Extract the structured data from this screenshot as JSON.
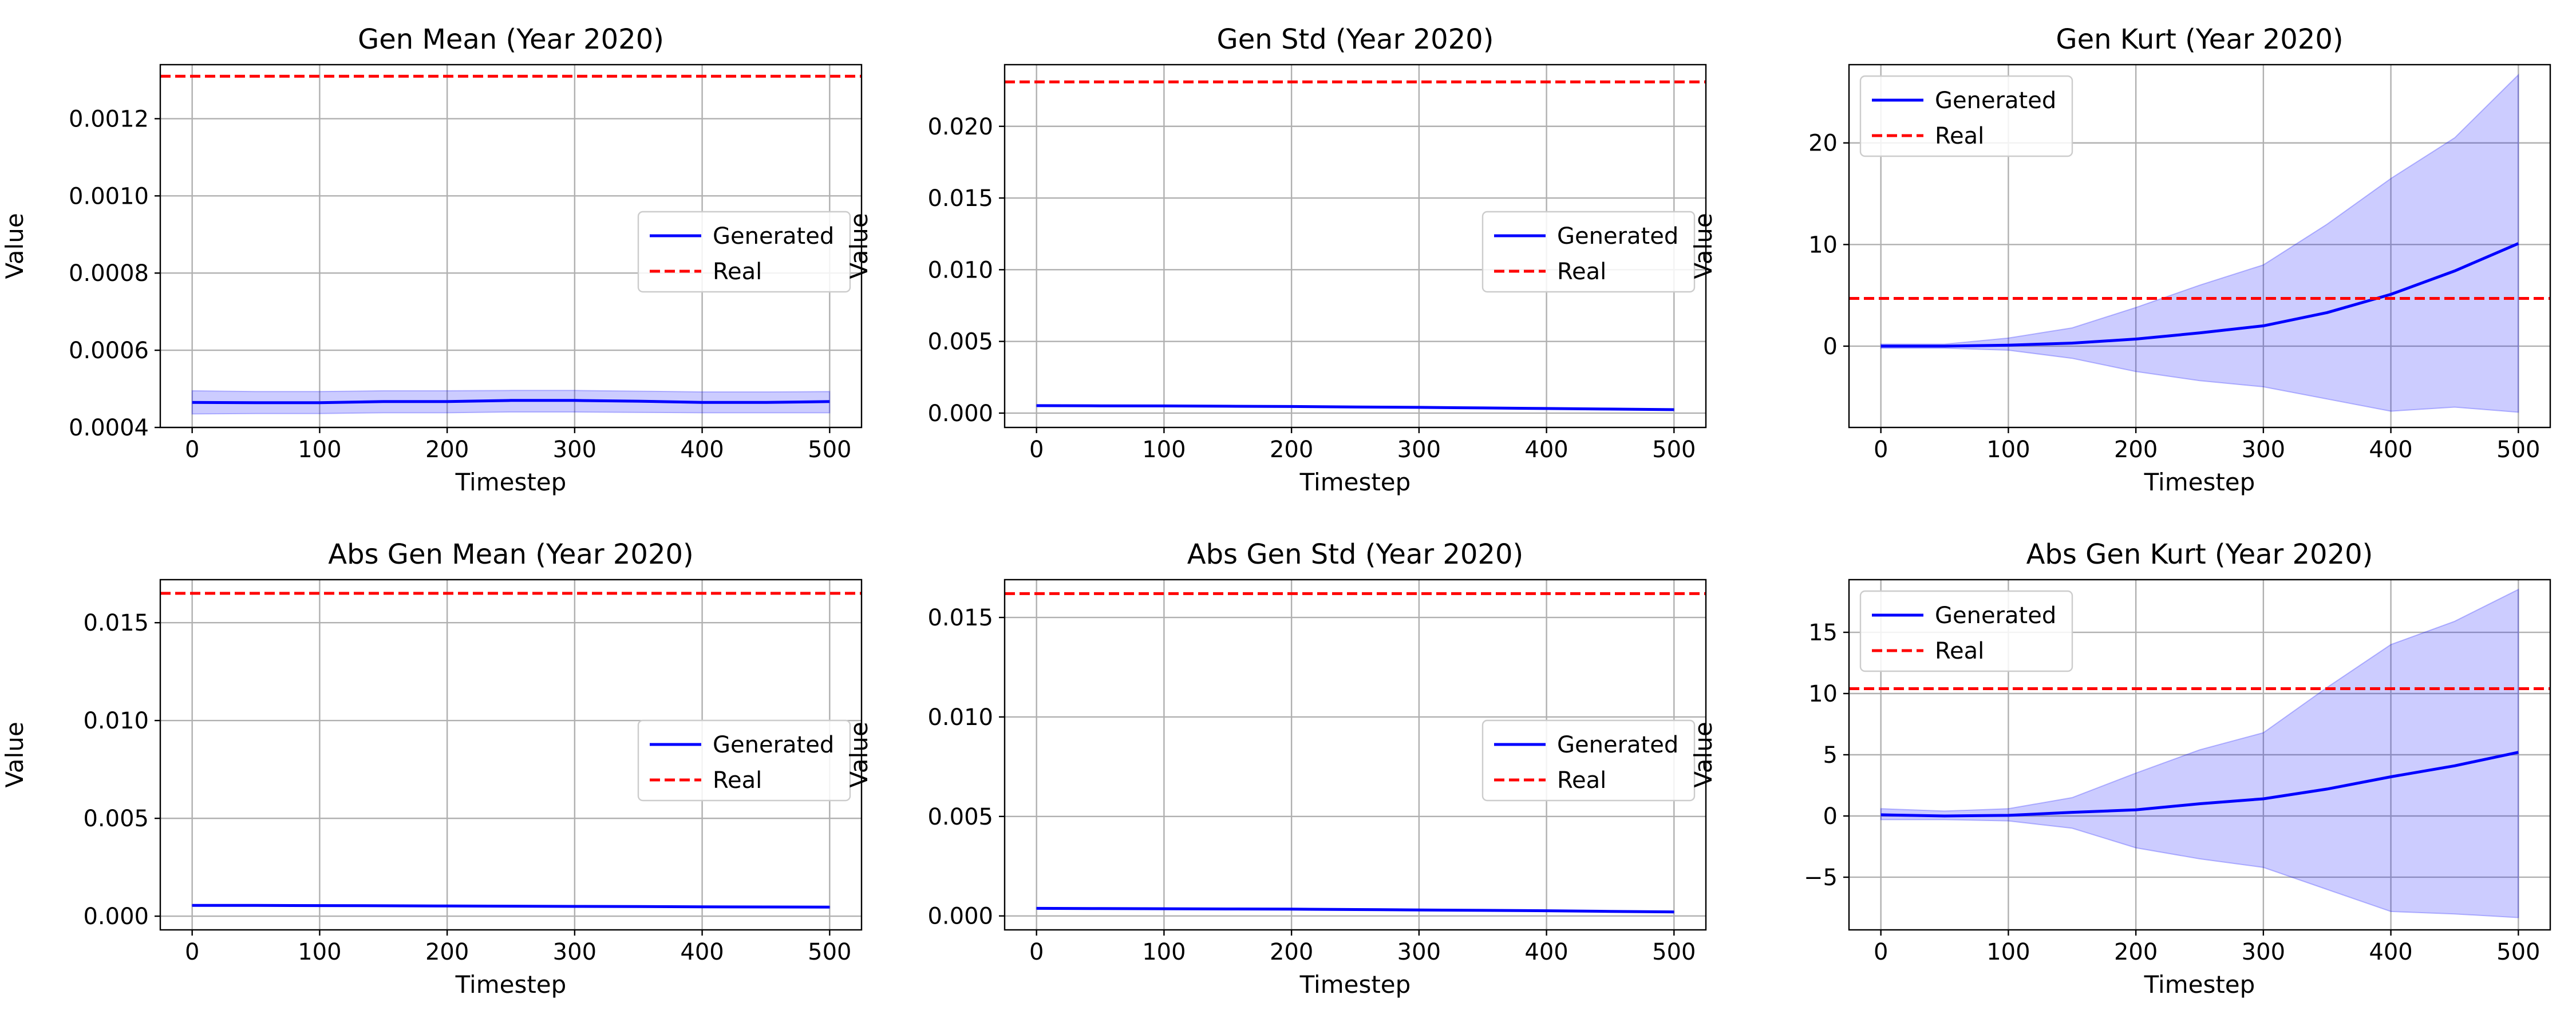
{
  "colors": {
    "generated": "#0000ff",
    "band": "#0000ff",
    "real": "#ff0000",
    "grid": "#b0b0b0"
  },
  "chart_data": [
    {
      "type": "line",
      "title": "Gen Mean (Year 2020)",
      "xlabel": "Timestep",
      "ylabel": "Value",
      "xlim": [
        -25,
        525
      ],
      "ylim": [
        0.0004,
        0.00134
      ],
      "xticks": [
        0,
        100,
        200,
        300,
        400,
        500
      ],
      "xtick_labels": [
        "0",
        "100",
        "200",
        "300",
        "400",
        "500"
      ],
      "yticks": [
        0.0004,
        0.0006,
        0.0008,
        0.001,
        0.0012
      ],
      "ytick_labels": [
        "0.0004",
        "0.0006",
        "0.0008",
        "0.0010",
        "0.0012"
      ],
      "grid": true,
      "legend_placement": "center-right",
      "x": [
        0,
        50,
        100,
        150,
        200,
        250,
        300,
        350,
        400,
        450,
        500
      ],
      "series": [
        {
          "name": "Generated",
          "style": "solid",
          "values": [
            0.000465,
            0.000464,
            0.000464,
            0.000467,
            0.000467,
            0.00047,
            0.00047,
            0.000468,
            0.000465,
            0.000465,
            0.000467
          ],
          "band_lower": [
            0.000435,
            0.000436,
            0.000436,
            0.000438,
            0.000438,
            0.00044,
            0.00044,
            0.000439,
            0.000438,
            0.000438,
            0.000438
          ],
          "band_upper": [
            0.000495,
            0.000493,
            0.000493,
            0.000495,
            0.000495,
            0.000496,
            0.000496,
            0.000494,
            0.000492,
            0.000492,
            0.000493
          ]
        },
        {
          "name": "Real",
          "style": "dashed",
          "constant": 0.00131
        }
      ]
    },
    {
      "type": "line",
      "title": "Gen Std (Year 2020)",
      "xlabel": "Timestep",
      "ylabel": "Value",
      "xlim": [
        -25,
        525
      ],
      "ylim": [
        -0.001,
        0.0243
      ],
      "xticks": [
        0,
        100,
        200,
        300,
        400,
        500
      ],
      "xtick_labels": [
        "0",
        "100",
        "200",
        "300",
        "400",
        "500"
      ],
      "yticks": [
        0.0,
        0.005,
        0.01,
        0.015,
        0.02
      ],
      "ytick_labels": [
        "0.000",
        "0.005",
        "0.010",
        "0.015",
        "0.020"
      ],
      "grid": true,
      "legend_placement": "center-right",
      "x": [
        0,
        50,
        100,
        150,
        200,
        250,
        300,
        350,
        400,
        450,
        500
      ],
      "series": [
        {
          "name": "Generated",
          "style": "solid",
          "values": [
            0.00052,
            0.00051,
            0.0005,
            0.00048,
            0.00046,
            0.00043,
            0.0004,
            0.00036,
            0.00032,
            0.00028,
            0.00024
          ],
          "band_lower": [
            0.00048,
            0.00047,
            0.00046,
            0.00044,
            0.00042,
            0.00039,
            0.00036,
            0.00032,
            0.00028,
            0.00024,
            0.0002
          ],
          "band_upper": [
            0.00056,
            0.00055,
            0.00054,
            0.00052,
            0.0005,
            0.00047,
            0.00044,
            0.0004,
            0.00036,
            0.00032,
            0.00028
          ]
        },
        {
          "name": "Real",
          "style": "dashed",
          "constant": 0.0231
        }
      ]
    },
    {
      "type": "line",
      "title": "Gen Kurt (Year 2020)",
      "xlabel": "Timestep",
      "ylabel": "Value",
      "xlim": [
        -25,
        525
      ],
      "ylim": [
        -8,
        27.7
      ],
      "xticks": [
        0,
        100,
        200,
        300,
        400,
        500
      ],
      "xtick_labels": [
        "0",
        "100",
        "200",
        "300",
        "400",
        "500"
      ],
      "yticks": [
        0,
        10,
        20
      ],
      "ytick_labels": [
        "0",
        "10",
        "20"
      ],
      "grid": true,
      "legend_placement": "upper-left",
      "x": [
        0,
        50,
        100,
        150,
        200,
        250,
        300,
        350,
        400,
        450,
        500
      ],
      "series": [
        {
          "name": "Generated",
          "style": "solid",
          "values": [
            0,
            0,
            0.1,
            0.3,
            0.7,
            1.3,
            2.0,
            3.3,
            5.1,
            7.4,
            10.1
          ],
          "band_lower": [
            -0.2,
            -0.2,
            -0.4,
            -1.2,
            -2.5,
            -3.4,
            -4.0,
            -5.2,
            -6.4,
            -6.0,
            -6.5
          ],
          "band_upper": [
            0.2,
            0.2,
            0.8,
            1.8,
            3.8,
            6.0,
            8.0,
            12.0,
            16.5,
            20.5,
            26.7
          ]
        },
        {
          "name": "Real",
          "style": "dashed",
          "constant": 4.7
        }
      ]
    },
    {
      "type": "line",
      "title": "Abs Gen Mean (Year 2020)",
      "xlabel": "Timestep",
      "ylabel": "Value",
      "xlim": [
        -25,
        525
      ],
      "ylim": [
        -0.0007,
        0.0172
      ],
      "xticks": [
        0,
        100,
        200,
        300,
        400,
        500
      ],
      "xtick_labels": [
        "0",
        "100",
        "200",
        "300",
        "400",
        "500"
      ],
      "yticks": [
        0.0,
        0.005,
        0.01,
        0.015
      ],
      "ytick_labels": [
        "0.000",
        "0.005",
        "0.010",
        "0.015"
      ],
      "grid": true,
      "legend_placement": "center-right",
      "x": [
        0,
        50,
        100,
        150,
        200,
        250,
        300,
        350,
        400,
        450,
        500
      ],
      "series": [
        {
          "name": "Generated",
          "style": "solid",
          "values": [
            0.00055,
            0.00055,
            0.00054,
            0.00053,
            0.00052,
            0.00051,
            0.0005,
            0.00049,
            0.00048,
            0.00047,
            0.00046
          ],
          "band_lower": [
            0.00052,
            0.00052,
            0.00051,
            0.0005,
            0.00049,
            0.00048,
            0.00047,
            0.00046,
            0.00045,
            0.00044,
            0.00043
          ],
          "band_upper": [
            0.00058,
            0.00058,
            0.00057,
            0.00056,
            0.00055,
            0.00054,
            0.00053,
            0.00052,
            0.00051,
            0.0005,
            0.00049
          ]
        },
        {
          "name": "Real",
          "style": "dashed",
          "constant": 0.0165
        }
      ]
    },
    {
      "type": "line",
      "title": "Abs Gen Std (Year 2020)",
      "xlabel": "Timestep",
      "ylabel": "Value",
      "xlim": [
        -25,
        525
      ],
      "ylim": [
        -0.0007,
        0.0169
      ],
      "xticks": [
        0,
        100,
        200,
        300,
        400,
        500
      ],
      "xtick_labels": [
        "0",
        "100",
        "200",
        "300",
        "400",
        "500"
      ],
      "yticks": [
        0.0,
        0.005,
        0.01,
        0.015
      ],
      "ytick_labels": [
        "0.000",
        "0.005",
        "0.010",
        "0.015"
      ],
      "grid": true,
      "legend_placement": "center-right",
      "x": [
        0,
        50,
        100,
        150,
        200,
        250,
        300,
        350,
        400,
        450,
        500
      ],
      "series": [
        {
          "name": "Generated",
          "style": "solid",
          "values": [
            0.00038,
            0.00037,
            0.00036,
            0.00035,
            0.00034,
            0.00032,
            0.0003,
            0.00028,
            0.00026,
            0.00023,
            0.0002
          ],
          "band_lower": [
            0.00035,
            0.00034,
            0.00033,
            0.00032,
            0.00031,
            0.00029,
            0.00027,
            0.00025,
            0.00023,
            0.0002,
            0.00017
          ],
          "band_upper": [
            0.00041,
            0.0004,
            0.00039,
            0.00038,
            0.00037,
            0.00035,
            0.00033,
            0.00031,
            0.00029,
            0.00026,
            0.00023
          ]
        },
        {
          "name": "Real",
          "style": "dashed",
          "constant": 0.0162
        }
      ]
    },
    {
      "type": "line",
      "title": "Abs Gen Kurt (Year 2020)",
      "xlabel": "Timestep",
      "ylabel": "Value",
      "xlim": [
        -25,
        525
      ],
      "ylim": [
        -9.3,
        19.3
      ],
      "xticks": [
        0,
        100,
        200,
        300,
        400,
        500
      ],
      "xtick_labels": [
        "0",
        "100",
        "200",
        "300",
        "400",
        "500"
      ],
      "yticks": [
        -5,
        0,
        5,
        10,
        15
      ],
      "ytick_labels": [
        "−5",
        "0",
        "5",
        "10",
        "15"
      ],
      "grid": true,
      "legend_placement": "upper-left",
      "x": [
        0,
        50,
        100,
        150,
        200,
        250,
        300,
        350,
        400,
        450,
        500
      ],
      "series": [
        {
          "name": "Generated",
          "style": "solid",
          "values": [
            0.1,
            0,
            0.05,
            0.3,
            0.5,
            1.0,
            1.4,
            2.2,
            3.2,
            4.1,
            5.2
          ],
          "band_lower": [
            -0.3,
            -0.3,
            -0.4,
            -1.0,
            -2.6,
            -3.5,
            -4.2,
            -6.0,
            -7.8,
            -8.0,
            -8.3
          ],
          "band_upper": [
            0.6,
            0.4,
            0.6,
            1.5,
            3.5,
            5.4,
            6.8,
            10.5,
            14.0,
            15.9,
            18.5
          ]
        },
        {
          "name": "Real",
          "style": "dashed",
          "constant": 10.4
        }
      ]
    }
  ]
}
